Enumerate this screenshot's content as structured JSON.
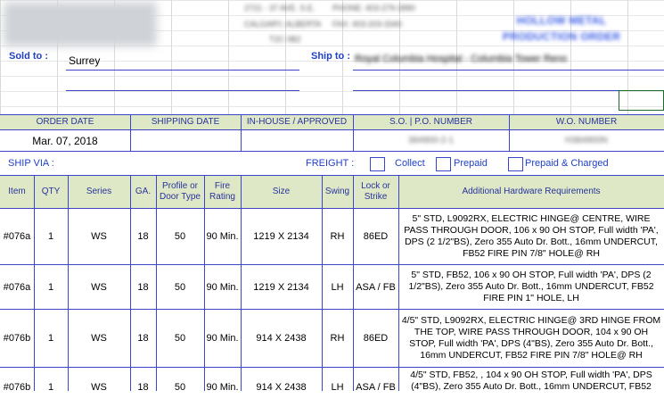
{
  "header": {
    "address_line1": "2721 - 37 AVE. S.E.",
    "address_line2": "CALGARY, ALBERTA",
    "address_line3": "T2C 0B2",
    "phone": "PHONE: 403-279-2890",
    "fax": "FAX: 403-203-3340",
    "title_line1": "HOLLOW METAL",
    "title_line2": "PRODUCTION ORDER"
  },
  "sold_to": {
    "label": "Sold to :",
    "value": "Surrey"
  },
  "ship_to": {
    "label": "Ship to :",
    "value": "Royal Columbia Hospital - Columbia Tower Reno"
  },
  "order_info": {
    "headers": [
      "ORDER DATE",
      "SHIPPING DATE",
      "IN-HOUSE / APPROVED",
      "S.O.  |  P.O. NUMBER",
      "W.O. NUMBER"
    ],
    "order_date": "Mar. 07, 2018",
    "shipping_date": "",
    "in_house": "",
    "so_po_number": "384900-2-1",
    "wo_number": "H384900N"
  },
  "ship_via": {
    "label": "SHIP VIA :",
    "freight_label": "FREIGHT :",
    "options": [
      "Collect",
      "Prepaid",
      "Prepaid & Charged"
    ]
  },
  "table": {
    "headers": [
      "Item",
      "QTY",
      "Series",
      "GA.",
      "Profile or\nDoor Type",
      "Fire\nRating",
      "Size",
      "Swing",
      "Lock or\nStrike",
      "Additional Hardware Requirements"
    ],
    "rows": [
      {
        "item": "#076a",
        "qty": "1",
        "series": "WS",
        "ga": "18",
        "profile": "50",
        "fire": "90 Min.",
        "size": "1219 X 2134",
        "swing": "RH",
        "lock": "86ED",
        "hardware": "5\" STD, L9092RX, ELECTRIC HINGE@ CENTRE, WIRE PASS THROUGH DOOR, 106 x 90 OH STOP, Full width 'PA', DPS  (2 1/2\"BS), Zero 355 Auto Dr. Bott., 16mm UNDERCUT, FB52 FIRE PIN 7/8\" HOLE@ RH"
      },
      {
        "item": "#076a",
        "qty": "1",
        "series": "WS",
        "ga": "18",
        "profile": "50",
        "fire": "90 Min.",
        "size": "1219 X 2134",
        "swing": "LH",
        "lock": "ASA / FB",
        "hardware": "5\" STD, FB52, 106 x 90 OH STOP, Full width 'PA', DPS  (2 1/2\"BS), Zero 355 Auto Dr. Bott., 16mm UNDERCUT, FB52 FIRE PIN 1\" HOLE, LH"
      },
      {
        "item": "#076b",
        "qty": "1",
        "series": "WS",
        "ga": "18",
        "profile": "50",
        "fire": "90 Min.",
        "size": "914 X 2438",
        "swing": "RH",
        "lock": "86ED",
        "hardware": "4/5\" STD, L9092RX, ELECTRIC HINGE@ 3RD HINGE FROM THE TOP, WIRE PASS THROUGH DOOR, 104 x 90 OH STOP, Full width 'PA', DPS  (4\"BS), Zero 355 Auto Dr. Bott., 16mm UNDERCUT, FB52 FIRE PIN 7/8\" HOLE@ RH"
      },
      {
        "item": "#076b",
        "qty": "1",
        "series": "WS",
        "ga": "18",
        "profile": "50",
        "fire": "90 Min.",
        "size": "914 X 2438",
        "swing": "LH",
        "lock": "ASA / FB",
        "hardware": "4/5\" STD, FB52, , 104 x 90 OH STOP, Full width 'PA', DPS  (4\"BS), Zero 355 Auto Dr. Bott., 16mm UNDERCUT, FB52"
      }
    ]
  }
}
